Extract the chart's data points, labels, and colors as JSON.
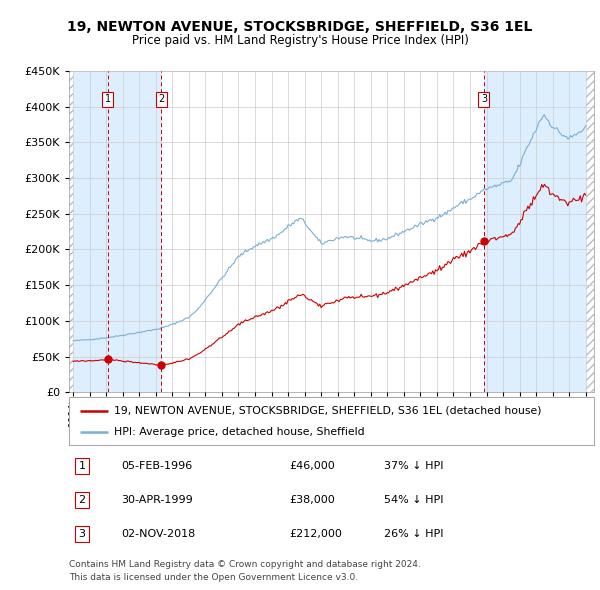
{
  "title": "19, NEWTON AVENUE, STOCKSBRIDGE, SHEFFIELD, S36 1EL",
  "subtitle": "Price paid vs. HM Land Registry's House Price Index (HPI)",
  "transactions": [
    {
      "date_float": 1996.0917,
      "price": 46000,
      "label": "1"
    },
    {
      "date_float": 1999.3333,
      "price": 38000,
      "label": "2"
    },
    {
      "date_float": 2018.8417,
      "price": 212000,
      "label": "3"
    }
  ],
  "legend_line1": "19, NEWTON AVENUE, STOCKSBRIDGE, SHEFFIELD, S36 1EL (detached house)",
  "legend_line2": "HPI: Average price, detached house, Sheffield",
  "table_rows": [
    {
      "num": "1",
      "date": "05-FEB-1996",
      "price": "£46,000",
      "change": "37% ↓ HPI"
    },
    {
      "num": "2",
      "date": "30-APR-1999",
      "price": "£38,000",
      "change": "54% ↓ HPI"
    },
    {
      "num": "3",
      "date": "02-NOV-2018",
      "price": "£212,000",
      "change": "26% ↓ HPI"
    }
  ],
  "footnote1": "Contains HM Land Registry data © Crown copyright and database right 2024.",
  "footnote2": "This data is licensed under the Open Government Licence v3.0.",
  "hpi_color": "#7bafd4",
  "price_color": "#cc0000",
  "marker_color": "#cc0000",
  "vline_color": "#cc0000",
  "shade_color": "#ddeeff",
  "grid_color": "#cccccc",
  "ylim": [
    0,
    450000
  ],
  "yticks": [
    0,
    50000,
    100000,
    150000,
    200000,
    250000,
    300000,
    350000,
    400000,
    450000
  ],
  "xmin": 1993.75,
  "xmax": 2025.5,
  "hpi_anchors_t": [
    1994.0,
    1994.5,
    1995.0,
    1995.5,
    1996.0,
    1996.5,
    1997.0,
    1997.5,
    1998.0,
    1998.5,
    1999.0,
    1999.5,
    2000.0,
    2000.5,
    2001.0,
    2001.5,
    2002.0,
    2002.5,
    2003.0,
    2003.5,
    2004.0,
    2004.5,
    2005.0,
    2005.5,
    2006.0,
    2006.5,
    2007.0,
    2007.5,
    2007.75,
    2008.0,
    2008.5,
    2009.0,
    2009.5,
    2010.0,
    2010.5,
    2011.0,
    2011.5,
    2012.0,
    2012.5,
    2013.0,
    2013.5,
    2014.0,
    2014.5,
    2015.0,
    2015.5,
    2016.0,
    2016.5,
    2017.0,
    2017.5,
    2018.0,
    2018.5,
    2019.0,
    2019.5,
    2020.0,
    2020.5,
    2021.0,
    2021.5,
    2022.0,
    2022.25,
    2022.5,
    2023.0,
    2023.5,
    2024.0,
    2024.5,
    2025.0
  ],
  "hpi_anchors_v": [
    72000,
    73000,
    74000,
    75000,
    76500,
    78000,
    80000,
    82000,
    84000,
    86000,
    88000,
    91000,
    95000,
    100000,
    105000,
    115000,
    130000,
    145000,
    160000,
    175000,
    190000,
    198000,
    205000,
    210000,
    215000,
    222000,
    232000,
    240000,
    243000,
    238000,
    222000,
    208000,
    212000,
    216000,
    218000,
    216000,
    214000,
    212000,
    213000,
    215000,
    220000,
    225000,
    230000,
    235000,
    240000,
    245000,
    250000,
    258000,
    265000,
    270000,
    278000,
    285000,
    288000,
    292000,
    296000,
    318000,
    345000,
    368000,
    382000,
    388000,
    372000,
    362000,
    355000,
    362000,
    370000
  ]
}
